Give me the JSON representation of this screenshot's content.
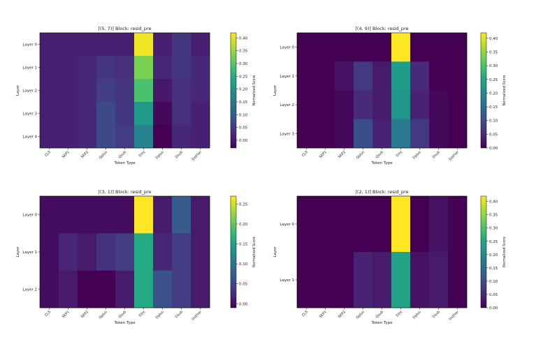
{
  "chart_data": [
    {
      "type": "heatmap",
      "title": "[(5, 7)] Block: resid_pre",
      "xlabel": "Token Type",
      "ylabel": "Layer",
      "colorbar_label": "Normalized Score",
      "categories": [
        "CLS",
        "SEP1",
        "SEP2",
        "Qplus",
        "Qsub",
        "Dinj",
        "Dplus",
        "Dsub",
        "Dother"
      ],
      "rows": [
        "Layer 0",
        "Layer 1",
        "Layer 2",
        "Layer 3",
        "Layer 4"
      ],
      "values": [
        [
          0.01,
          0.01,
          0.01,
          0.01,
          0.01,
          0.41,
          0.01,
          0.04,
          0.01
        ],
        [
          0.01,
          0.01,
          0.02,
          0.04,
          0.03,
          0.33,
          0.02,
          0.04,
          0.02
        ],
        [
          0.01,
          0.01,
          0.02,
          0.05,
          0.04,
          0.29,
          0.0,
          0.03,
          0.02
        ],
        [
          0.01,
          0.01,
          0.02,
          0.07,
          0.04,
          0.21,
          -0.02,
          0.03,
          0.01
        ],
        [
          0.01,
          0.01,
          0.02,
          0.07,
          0.05,
          0.17,
          -0.03,
          0.02,
          0.01
        ]
      ],
      "vmin": -0.03,
      "vmax": 0.42,
      "colorbar_ticks": [
        "0.40",
        "0.35",
        "0.30",
        "0.25",
        "0.20",
        "0.15",
        "0.10",
        "0.05",
        "0.00"
      ],
      "colorbar_tick_values": [
        0.4,
        0.35,
        0.3,
        0.25,
        0.2,
        0.15,
        0.1,
        0.05,
        0.0
      ]
    },
    {
      "type": "heatmap",
      "title": "[(4, 9)] Block: resid_pre",
      "xlabel": "Token Type",
      "ylabel": "Layer",
      "colorbar_label": "Normalized Score",
      "categories": [
        "CLS",
        "SEP1",
        "SEP2",
        "Qplus",
        "Qsub",
        "Dinj",
        "Dplus",
        "Dsub",
        "Dother"
      ],
      "rows": [
        "Layer 0",
        "Layer 1",
        "Layer 2",
        "Layer 3"
      ],
      "values": [
        [
          0.0,
          0.0,
          0.0,
          0.0,
          0.0,
          0.42,
          0.0,
          0.0,
          0.0
        ],
        [
          0.0,
          0.0,
          0.02,
          0.07,
          0.03,
          0.23,
          0.05,
          0.0,
          0.0
        ],
        [
          0.0,
          0.0,
          0.01,
          0.05,
          0.03,
          0.22,
          0.04,
          0.01,
          0.0
        ],
        [
          0.0,
          0.0,
          0.01,
          0.1,
          0.04,
          0.17,
          0.07,
          0.01,
          0.0
        ]
      ],
      "vmin": 0.0,
      "vmax": 0.42,
      "colorbar_ticks": [
        "0.40",
        "0.35",
        "0.30",
        "0.25",
        "0.20",
        "0.15",
        "0.10",
        "0.05",
        "0.00"
      ],
      "colorbar_tick_values": [
        0.4,
        0.35,
        0.3,
        0.25,
        0.2,
        0.15,
        0.1,
        0.05,
        0.0
      ]
    },
    {
      "type": "heatmap",
      "title": "[(3, 1)] Block: resid_pre",
      "xlabel": "Token Type",
      "ylabel": "Layer",
      "colorbar_label": "Normalized Score",
      "categories": [
        "CLS",
        "SEP1",
        "SEP2",
        "Qplus",
        "Qsub",
        "Dinj",
        "Dplus",
        "Dsub",
        "Dother"
      ],
      "rows": [
        "Layer 0",
        "Layer 1",
        "Layer 2"
      ],
      "values": [
        [
          0.0,
          0.0,
          0.0,
          0.0,
          0.0,
          0.27,
          0.01,
          0.07,
          0.01
        ],
        [
          0.0,
          0.02,
          0.01,
          0.03,
          0.04,
          0.16,
          0.02,
          0.04,
          0.01
        ],
        [
          0.0,
          0.01,
          -0.01,
          -0.01,
          0.01,
          0.16,
          0.06,
          0.04,
          0.01
        ]
      ],
      "vmin": -0.01,
      "vmax": 0.27,
      "colorbar_ticks": [
        "0.25",
        "0.20",
        "0.15",
        "0.10",
        "0.05",
        "0.00"
      ],
      "colorbar_tick_values": [
        0.25,
        0.2,
        0.15,
        0.1,
        0.05,
        0.0
      ]
    },
    {
      "type": "heatmap",
      "title": "[(2, 1)] Block: resid_pre",
      "xlabel": "Token Type",
      "ylabel": "Layer",
      "colorbar_label": "Normalized Score",
      "categories": [
        "CLS",
        "SEP1",
        "SEP2",
        "Qplus",
        "Qsub",
        "Dinj",
        "Dplus",
        "Dsub",
        "Dother"
      ],
      "rows": [
        "Layer 0",
        "Layer 1"
      ],
      "values": [
        [
          0.0,
          0.0,
          0.0,
          0.0,
          0.0,
          0.42,
          0.0,
          0.02,
          0.0
        ],
        [
          0.0,
          0.0,
          0.0,
          0.04,
          0.03,
          0.24,
          0.02,
          0.03,
          0.0
        ]
      ],
      "vmin": 0.0,
      "vmax": 0.42,
      "colorbar_ticks": [
        "0.40",
        "0.35",
        "0.30",
        "0.25",
        "0.20",
        "0.15",
        "0.10",
        "0.05",
        "0.00"
      ],
      "colorbar_tick_values": [
        0.4,
        0.35,
        0.3,
        0.25,
        0.2,
        0.15,
        0.1,
        0.05,
        0.0
      ]
    }
  ]
}
